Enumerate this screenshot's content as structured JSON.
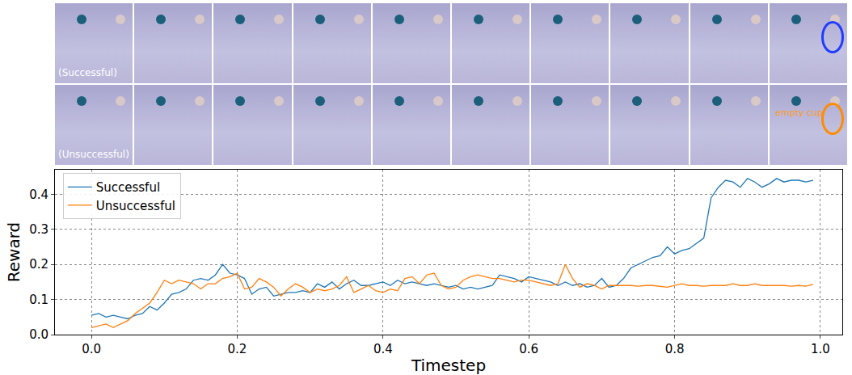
{
  "image_strip": {
    "rows": [
      {
        "label": "(Successful)",
        "color": "#1f3cff"
      },
      {
        "label": "(Unsuccessful)",
        "note": "empty cup",
        "color": "#ff8c00"
      }
    ],
    "frames_per_row": 10
  },
  "chart_data": {
    "type": "line",
    "x_label": "Timestep",
    "y_label": "Reward",
    "x": [
      0.0,
      0.01,
      0.02,
      0.03,
      0.04,
      0.05,
      0.06,
      0.07,
      0.08,
      0.09,
      0.1,
      0.11,
      0.12,
      0.13,
      0.14,
      0.15,
      0.16,
      0.17,
      0.18,
      0.19,
      0.2,
      0.21,
      0.22,
      0.23,
      0.24,
      0.25,
      0.26,
      0.27,
      0.28,
      0.29,
      0.3,
      0.31,
      0.32,
      0.33,
      0.34,
      0.35,
      0.36,
      0.37,
      0.38,
      0.39,
      0.4,
      0.41,
      0.42,
      0.43,
      0.44,
      0.45,
      0.46,
      0.47,
      0.48,
      0.49,
      0.5,
      0.51,
      0.52,
      0.53,
      0.54,
      0.55,
      0.56,
      0.57,
      0.58,
      0.59,
      0.6,
      0.61,
      0.62,
      0.63,
      0.64,
      0.65,
      0.66,
      0.67,
      0.68,
      0.69,
      0.7,
      0.71,
      0.72,
      0.73,
      0.74,
      0.75,
      0.76,
      0.77,
      0.78,
      0.79,
      0.8,
      0.81,
      0.82,
      0.83,
      0.84,
      0.85,
      0.86,
      0.87,
      0.88,
      0.89,
      0.9,
      0.91,
      0.92,
      0.93,
      0.94,
      0.95,
      0.96,
      0.97,
      0.98,
      0.99
    ],
    "series": [
      {
        "name": "Successful",
        "color": "#1f77b4",
        "values": [
          0.055,
          0.06,
          0.05,
          0.055,
          0.05,
          0.045,
          0.055,
          0.06,
          0.08,
          0.07,
          0.09,
          0.115,
          0.12,
          0.13,
          0.155,
          0.16,
          0.155,
          0.17,
          0.2,
          0.175,
          0.17,
          0.16,
          0.115,
          0.13,
          0.135,
          0.11,
          0.115,
          0.12,
          0.12,
          0.125,
          0.12,
          0.145,
          0.135,
          0.15,
          0.13,
          0.145,
          0.155,
          0.14,
          0.14,
          0.145,
          0.15,
          0.14,
          0.155,
          0.145,
          0.15,
          0.145,
          0.14,
          0.145,
          0.14,
          0.135,
          0.14,
          0.13,
          0.135,
          0.13,
          0.135,
          0.14,
          0.17,
          0.165,
          0.16,
          0.15,
          0.165,
          0.16,
          0.155,
          0.15,
          0.14,
          0.15,
          0.14,
          0.145,
          0.135,
          0.14,
          0.16,
          0.135,
          0.14,
          0.16,
          0.19,
          0.2,
          0.21,
          0.22,
          0.225,
          0.25,
          0.23,
          0.24,
          0.245,
          0.26,
          0.275,
          0.39,
          0.42,
          0.44,
          0.435,
          0.42,
          0.445,
          0.435,
          0.42,
          0.43,
          0.445,
          0.435,
          0.44,
          0.44,
          0.435,
          0.44
        ]
      },
      {
        "name": "Unsuccessful",
        "color": "#ff7f0e",
        "values": [
          0.02,
          0.025,
          0.03,
          0.02,
          0.03,
          0.04,
          0.06,
          0.075,
          0.09,
          0.12,
          0.155,
          0.145,
          0.155,
          0.15,
          0.145,
          0.13,
          0.145,
          0.145,
          0.16,
          0.165,
          0.175,
          0.13,
          0.135,
          0.16,
          0.15,
          0.135,
          0.11,
          0.13,
          0.145,
          0.135,
          0.12,
          0.13,
          0.125,
          0.13,
          0.14,
          0.165,
          0.12,
          0.13,
          0.14,
          0.125,
          0.12,
          0.13,
          0.125,
          0.16,
          0.165,
          0.145,
          0.17,
          0.175,
          0.14,
          0.13,
          0.135,
          0.155,
          0.165,
          0.17,
          0.165,
          0.16,
          0.16,
          0.155,
          0.15,
          0.155,
          0.155,
          0.15,
          0.145,
          0.14,
          0.145,
          0.2,
          0.16,
          0.135,
          0.145,
          0.14,
          0.13,
          0.14,
          0.14,
          0.14,
          0.14,
          0.138,
          0.14,
          0.14,
          0.138,
          0.135,
          0.14,
          0.145,
          0.14,
          0.14,
          0.138,
          0.14,
          0.14,
          0.14,
          0.145,
          0.14,
          0.14,
          0.145,
          0.14,
          0.14,
          0.14,
          0.14,
          0.138,
          0.14,
          0.138,
          0.143
        ]
      }
    ],
    "xlim": [
      -0.05,
      1.03
    ],
    "xticks": [
      {
        "value": 0,
        "label": "0.0"
      },
      {
        "value": 0.2,
        "label": "0.2"
      },
      {
        "value": 0.4,
        "label": "0.4"
      },
      {
        "value": 0.6,
        "label": "0.6"
      },
      {
        "value": 0.8,
        "label": "0.8"
      },
      {
        "value": 1,
        "label": "1.0"
      }
    ],
    "ylim": [
      0,
      0.47
    ],
    "yticks": [
      {
        "value": 0,
        "label": "0.0"
      },
      {
        "value": 0.1,
        "label": "0.1"
      },
      {
        "value": 0.2,
        "label": "0.2"
      },
      {
        "value": 0.3,
        "label": "0.3"
      },
      {
        "value": 0.4,
        "label": "0.4"
      }
    ],
    "grid": true,
    "legend": "upper left"
  }
}
